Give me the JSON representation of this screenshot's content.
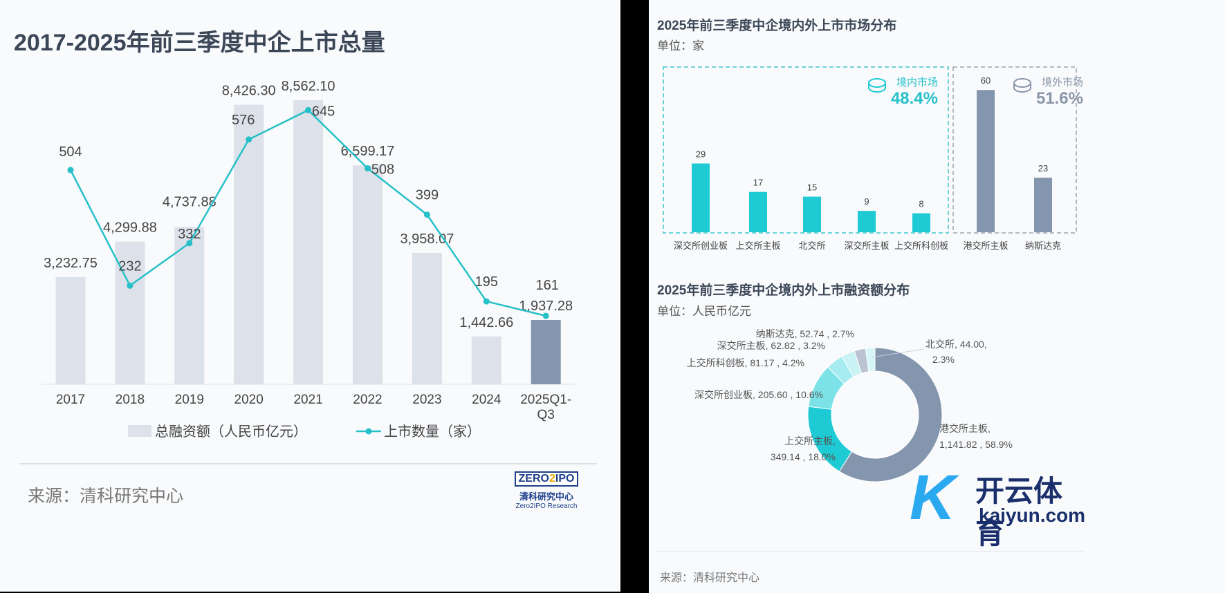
{
  "left": {
    "title": "2017-2025年前三季度中企上市总量",
    "source": "来源：清科研究中心",
    "logo": {
      "mark": "ZERO2IPO",
      "cn": "清科研究中心",
      "en": "Zero2IPO Research"
    }
  },
  "right": {
    "bar_title": "2025年前三季度中企境内外上市市场分布",
    "bar_unit": "单位：家",
    "domestic": {
      "label": "境内市场",
      "pct": "48.4%"
    },
    "overseas": {
      "label": "境外市场",
      "pct": "51.6%"
    },
    "donut_title": "2025年前三季度中企境内外上市融资额分布",
    "donut_unit": "单位：人民币亿元",
    "source": "来源：清科研究中心",
    "watermark": {
      "cn": "开云体育",
      "en": "kaiyun.com"
    }
  },
  "colors": {
    "bar": "#dde2ea",
    "bar_highlight": "#8496ae",
    "line": "#26c0c8",
    "teal": "#1ecad3",
    "gray": "#8496ae"
  },
  "chart_data": [
    {
      "type": "bar+line",
      "title": "2017-2025年前三季度中企上市总量",
      "categories": [
        "2017",
        "2018",
        "2019",
        "2020",
        "2021",
        "2022",
        "2023",
        "2024",
        "2025Q1-Q3"
      ],
      "series": [
        {
          "name": "总融资额（人民币亿元）",
          "type": "bar",
          "values": [
            3232.75,
            4299.88,
            4737.88,
            8426.3,
            8562.1,
            6599.17,
            3958.07,
            1442.66,
            1937.28
          ],
          "labels": [
            "3,232.75",
            "4,299.88",
            "4,737.88",
            "8,426.30",
            "8,562.10",
            "6,599.17",
            "3,958.07",
            "1,442.66",
            "1,937.28"
          ]
        },
        {
          "name": "上市数量（家）",
          "type": "line",
          "values": [
            504,
            232,
            332,
            576,
            645,
            508,
            399,
            195,
            161
          ]
        }
      ],
      "legend": "bottom"
    },
    {
      "type": "bar",
      "title": "2025年前三季度中企境内外上市市场分布",
      "ylabel": "家",
      "categories": [
        "深交所创业板",
        "上交所主板",
        "北交所",
        "深交所主板",
        "上交所科创板",
        "港交所主板",
        "纳斯达克"
      ],
      "values": [
        29,
        17,
        15,
        9,
        8,
        60,
        23
      ],
      "groups": [
        "境内",
        "境内",
        "境内",
        "境内",
        "境内",
        "境外",
        "境外"
      ]
    },
    {
      "type": "pie",
      "title": "2025年前三季度中企境内外上市融资额分布",
      "slices": [
        {
          "name": "港交所主板",
          "value": 1141.82,
          "label": "1,141.82",
          "pct": "58.9%",
          "color": "#8496ae"
        },
        {
          "name": "上交所主板",
          "value": 349.14,
          "label": "349.14",
          "pct": "18.0%",
          "color": "#1ecad3"
        },
        {
          "name": "深交所创业板",
          "value": 205.6,
          "label": "205.60",
          "pct": "10.6%",
          "color": "#7ce2e8"
        },
        {
          "name": "上交所科创板",
          "value": 81.17,
          "label": "81.17",
          "pct": "4.2%",
          "color": "#a6ebef"
        },
        {
          "name": "深交所主板",
          "value": 62.82,
          "label": "62.82",
          "pct": "3.2%",
          "color": "#c9f2f4"
        },
        {
          "name": "纳斯达克",
          "value": 52.74,
          "label": "52.74",
          "pct": "2.7%",
          "color": "#b9c3d1"
        },
        {
          "name": "北交所",
          "value": 44.0,
          "label": "44.00",
          "pct": "2.3%",
          "color": "#d6f6f8"
        }
      ]
    }
  ]
}
